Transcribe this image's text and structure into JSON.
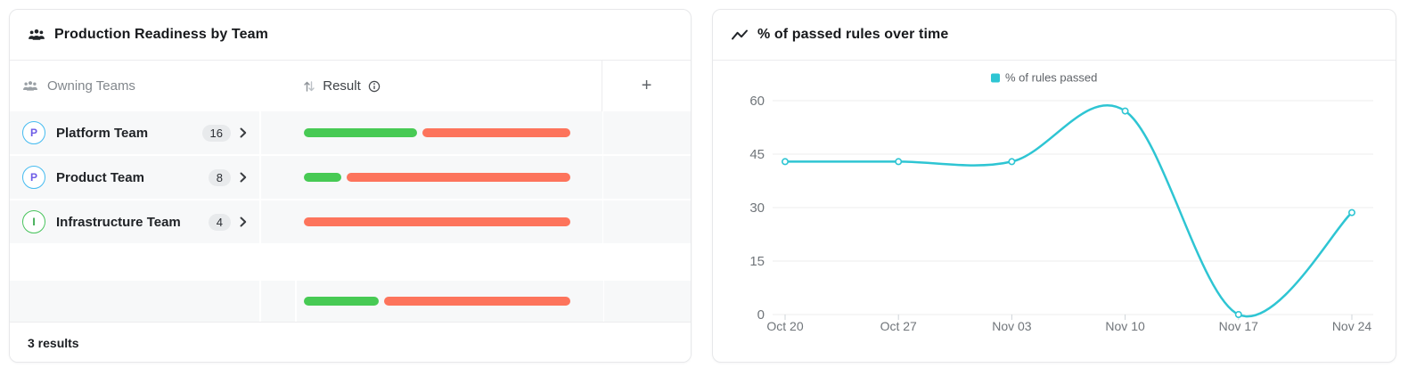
{
  "left_card": {
    "title": "Production Readiness by Team",
    "title_icon": "team-icon",
    "columns": {
      "owning_teams": {
        "label": "Owning Teams",
        "icon": "team-icon"
      },
      "result": {
        "label": "Result",
        "sort_icon": "sort-arrows-icon",
        "info_icon": "info-icon"
      },
      "add_column": {
        "label": "+"
      }
    },
    "rows": [
      {
        "initial": "P",
        "ring_color": "#45bbf0",
        "letter_color": "#6d5ce6",
        "name": "Platform Team",
        "count": "16",
        "passed_pct": 43.5,
        "failed_pct": 56.5
      },
      {
        "initial": "P",
        "ring_color": "#45bbf0",
        "letter_color": "#6d5ce6",
        "name": "Product Team",
        "count": "8",
        "passed_pct": 14.5,
        "failed_pct": 85.5
      },
      {
        "initial": "I",
        "ring_color": "#47c35b",
        "letter_color": "#35a84a",
        "name": "Infrastructure Team",
        "count": "4",
        "passed_pct": 0,
        "failed_pct": 100
      }
    ],
    "summary": {
      "passed_pct": 28.5,
      "failed_pct": 71.5
    },
    "footer": "3 results",
    "colors": {
      "passed": "#47ca54",
      "failed": "#fd745c",
      "row_bg": "#f7f8f9"
    }
  },
  "right_card": {
    "title": "% of passed rules over time",
    "title_icon": "trend-line-icon"
  },
  "chart_data": {
    "type": "line",
    "title": "% of passed rules over time",
    "x": [
      "Oct 20",
      "Oct 27",
      "Nov 03",
      "Nov 10",
      "Nov 17",
      "Nov 24"
    ],
    "series": [
      {
        "name": "% of rules passed",
        "values": [
          42.9,
          42.9,
          42.9,
          57.1,
          0,
          28.6
        ],
        "color": "#2ec5d3"
      }
    ],
    "yticks": [
      0,
      15,
      30,
      45,
      60
    ],
    "ylim": [
      0,
      60
    ],
    "smooth": true,
    "markers": "hollow-circle",
    "legend_position": "top",
    "grid": "horizontal",
    "axis_label_color": "#70757a",
    "grid_color": "#ededee",
    "legend_text_color": "#5f6368"
  }
}
